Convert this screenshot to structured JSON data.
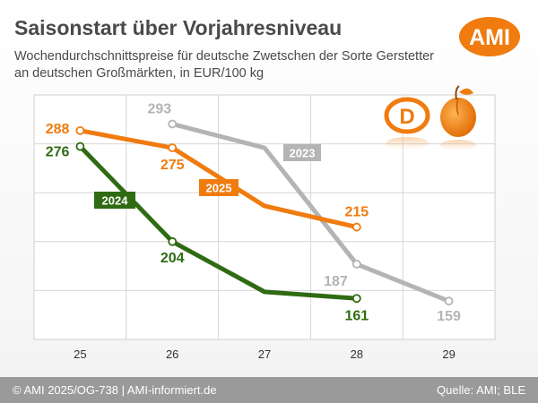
{
  "header": {
    "title": "Saisonstart über Vorjahresniveau",
    "subtitle_line1": "Wochendurchschnittspreise für deutsche Zwetschen der Sorte Gerstetter",
    "subtitle_line2": "an deutschen Großmärkten, in EUR/100 kg",
    "logo_text": "AMI",
    "origin_badge": "D"
  },
  "footer": {
    "left": "© AMI 2025/OG-738 | AMI-informiert.de",
    "right": "Quelle: AMI; BLE"
  },
  "colors": {
    "series_2023": "#b4b4b4",
    "series_2024": "#2f6b12",
    "series_2025": "#f07b0e",
    "brand_orange": "#f07b0e"
  },
  "chart_data": {
    "type": "line",
    "x_ticks": [
      "25",
      "26",
      "27",
      "28",
      "29"
    ],
    "xlim": [
      24.5,
      29.5
    ],
    "ylim": [
      130,
      315
    ],
    "grid": true,
    "legend": "inline labels",
    "series": [
      {
        "name": "2023",
        "color": "#b4b4b4",
        "points": [
          {
            "x": 26,
            "y": 293,
            "label": "293"
          },
          {
            "x": 27,
            "y": 275,
            "label": null
          },
          {
            "x": 28,
            "y": 187,
            "label": "187"
          },
          {
            "x": 29,
            "y": 159,
            "label": "159"
          }
        ]
      },
      {
        "name": "2024",
        "color": "#2f6b12",
        "points": [
          {
            "x": 25,
            "y": 276,
            "label": "276"
          },
          {
            "x": 26,
            "y": 204,
            "label": "204"
          },
          {
            "x": 27,
            "y": 166,
            "label": null
          },
          {
            "x": 28,
            "y": 161,
            "label": "161"
          }
        ]
      },
      {
        "name": "2025",
        "color": "#f07b0e",
        "points": [
          {
            "x": 25,
            "y": 288,
            "label": "288"
          },
          {
            "x": 26,
            "y": 275,
            "label": "275"
          },
          {
            "x": 27,
            "y": 231,
            "label": null
          },
          {
            "x": 28,
            "y": 215,
            "label": "215"
          }
        ]
      }
    ]
  }
}
